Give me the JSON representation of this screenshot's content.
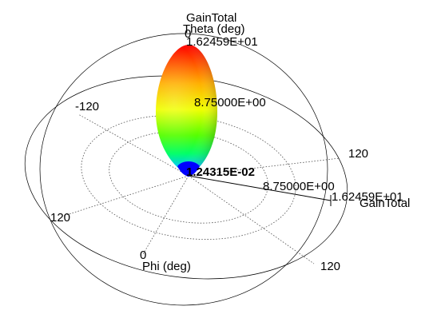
{
  "chart_data": {
    "type": "3d-radiation-pattern",
    "title": "GainTotal",
    "gain_max": "1.62459E+01",
    "gain_mid": "8.75000E+00",
    "gain_min": "1.24315E-02",
    "gain_max_axis": "1.62459E+01",
    "gain_axis_label": "GainTotal",
    "theta_label": "Theta (deg)",
    "theta_zero": "0",
    "phi_label": "Phi (deg)",
    "phi_zero": "0",
    "angle_ticks": [
      "-120",
      "120",
      "120",
      "120"
    ],
    "colormap": [
      "#0000ff",
      "#00ff00",
      "#ffff00",
      "#ff0000"
    ]
  }
}
